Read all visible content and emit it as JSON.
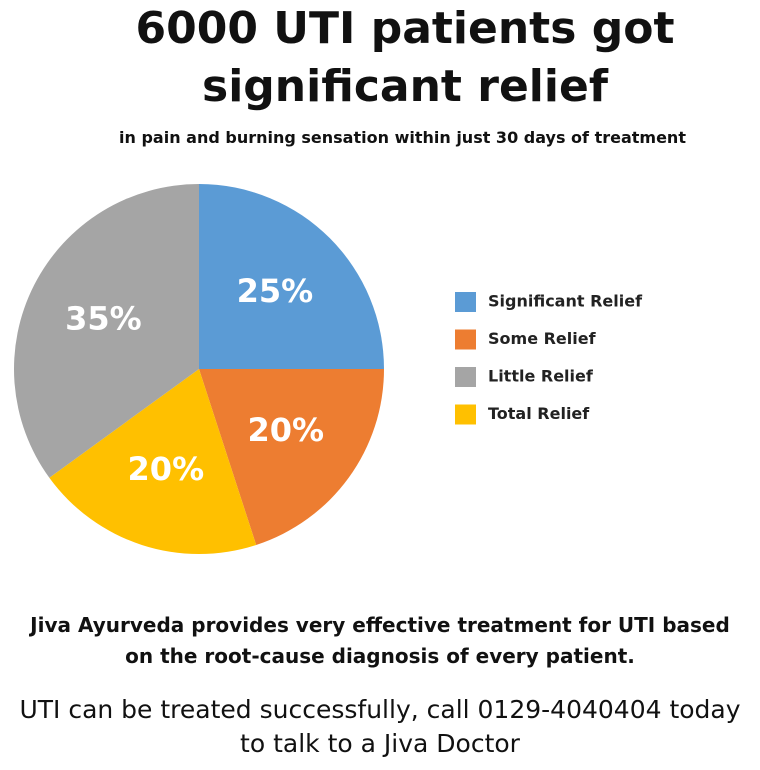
{
  "chart_data": {
    "type": "pie",
    "title": "6000 UTI patients got significant relief",
    "subtitle": "in pain and burning sensation within just 30 days of treatment",
    "categories": [
      "Significant Relief",
      "Some Relief",
      "Little Relief",
      "Total Relief"
    ],
    "values": [
      25,
      20,
      35,
      20
    ],
    "value_labels": [
      "25%",
      "20%",
      "35%",
      "20%"
    ],
    "colors": [
      "#5b9bd5",
      "#ed7d31",
      "#a5a5a5",
      "#ffc000"
    ],
    "legend": "right",
    "annotations": [
      "Jiva Ayurveda provides very effective treatment for UTI based on the root-cause diagnosis of every patient.",
      "UTI can be treated successfully, call 0129-4040404 today to talk to a Jiva Doctor"
    ]
  }
}
